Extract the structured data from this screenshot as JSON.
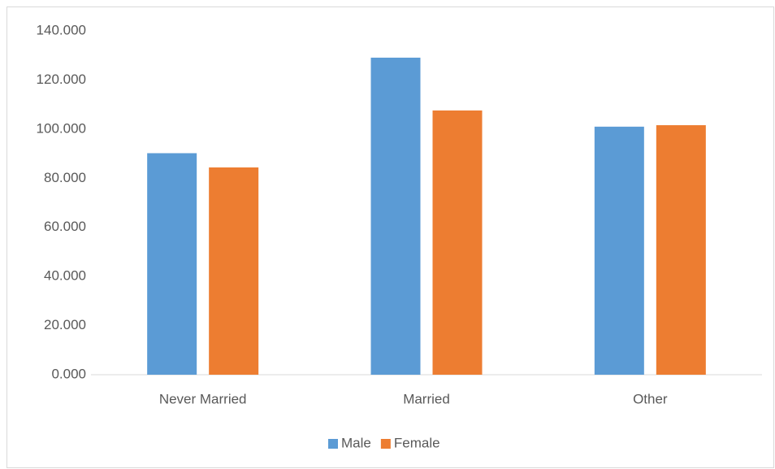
{
  "chart_data": {
    "type": "bar",
    "categories": [
      "Never Married",
      "Married",
      "Other"
    ],
    "series": [
      {
        "name": "Male",
        "color": "#5b9bd5",
        "values": [
          90.2,
          129.1,
          101.0
        ]
      },
      {
        "name": "Female",
        "color": "#ed7d31",
        "values": [
          84.4,
          107.6,
          101.6
        ]
      }
    ],
    "ylim": [
      0,
      140
    ],
    "yticks": [
      {
        "value": 0,
        "label": "0.000"
      },
      {
        "value": 20,
        "label": "20.000"
      },
      {
        "value": 40,
        "label": "40.000"
      },
      {
        "value": 60,
        "label": "60.000"
      },
      {
        "value": 80,
        "label": "80.000"
      },
      {
        "value": 100,
        "label": "100.000"
      },
      {
        "value": 120,
        "label": "120.000"
      },
      {
        "value": 140,
        "label": "140.000"
      }
    ],
    "grid": false,
    "legend": "bottom"
  }
}
